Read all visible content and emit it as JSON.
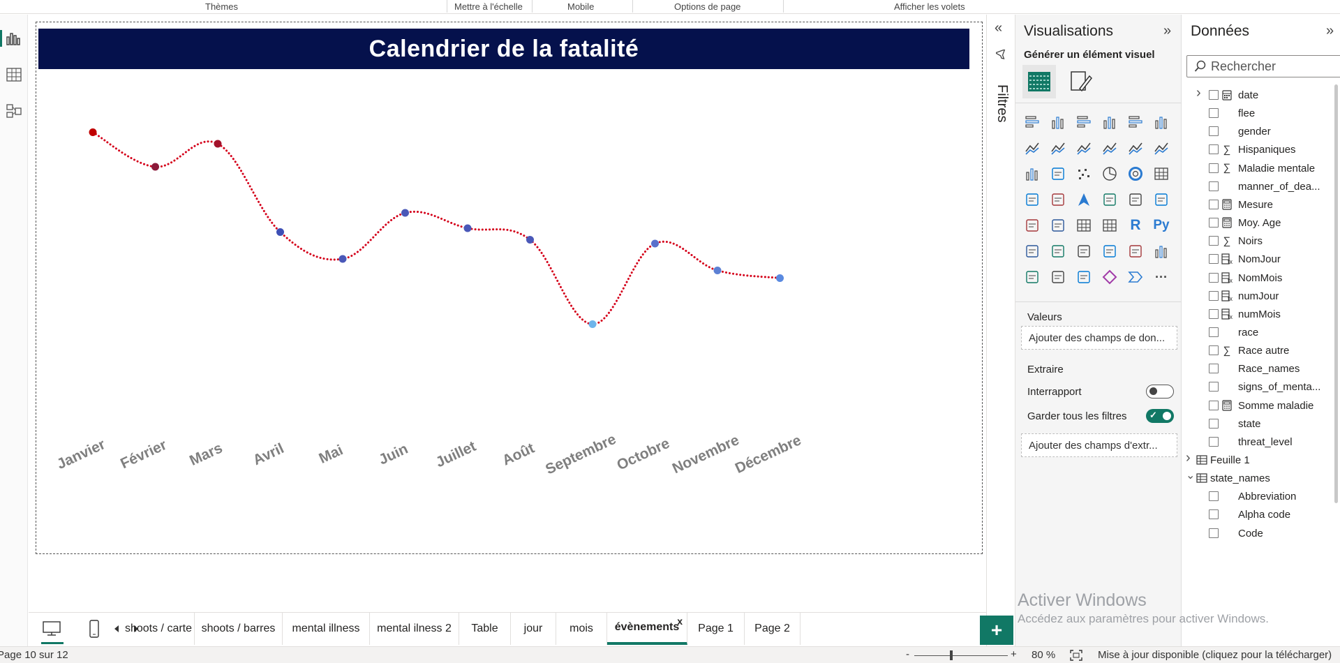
{
  "ribbon": {
    "groups": [
      "Thèmes",
      "Mettre à l'échelle",
      "Mobile",
      "Options de page",
      "Afficher les volets"
    ]
  },
  "left_rail": {
    "icons": [
      "report-view-icon",
      "table-view-icon",
      "model-view-icon"
    ]
  },
  "report": {
    "title": "Calendrier de la fatalité"
  },
  "chart_data": {
    "type": "line",
    "title": "Calendrier de la fatalité",
    "categories": [
      "Janvier",
      "Février",
      "Mars",
      "Avril",
      "Mai",
      "Juin",
      "Juillet",
      "Août",
      "Septembre",
      "Octobre",
      "Novembre",
      "Décembre"
    ],
    "values": [
      95,
      86,
      92,
      69,
      62,
      74,
      70,
      67,
      45,
      66,
      59,
      57
    ],
    "marker_colors": [
      "#c00000",
      "#8b1a3a",
      "#a3122a",
      "#3d4fb5",
      "#4a58b8",
      "#4a58b8",
      "#4a58b8",
      "#4a58b8",
      "#6fb5ea",
      "#5a70cc",
      "#5c80d4",
      "#5a8ae0"
    ],
    "line_color": "#d4001a",
    "line_style": "dotted",
    "axis_label_color": "#7f7f7f",
    "grid": false,
    "legend": "none"
  },
  "filters": {
    "label": "Filtres"
  },
  "visualisations": {
    "title": "Visualisations",
    "subtitle": "Générer un élément visuel",
    "icons": [
      "stacked-bar-icon",
      "stacked-column-icon",
      "clustered-bar-icon",
      "clustered-column-icon",
      "100-bar-icon",
      "100-column-icon",
      "line-chart-icon",
      "area-chart-icon",
      "stacked-area-icon",
      "line-column-icon",
      "line-clustered-icon",
      "ribbon-chart-icon",
      "waterfall-icon",
      "funnel-icon",
      "scatter-icon",
      "pie-icon",
      "donut-icon",
      "treemap-icon",
      "map-icon",
      "filled-map-icon",
      "azure-map-icon",
      "gauge-icon",
      "card-icon",
      "multirow-card-icon",
      "kpi-icon",
      "slicer-icon",
      "table-icon",
      "matrix-icon",
      "r-visual-icon",
      "python-visual-icon",
      "key-influencers-icon",
      "decomposition-tree-icon",
      "qa-icon",
      "smart-narrative-icon",
      "metrics-icon",
      "paginated-report-icon",
      "power-apps-icon",
      "power-automate-icon",
      "custom-visual-icon",
      "diamond-visual-icon",
      "chevron-visual-icon",
      "more-icon"
    ],
    "values_label": "Valeurs",
    "values_placeholder": "Ajouter des champs de don...",
    "drillthrough_label": "Extraire",
    "cross_report_label": "Interrapport",
    "cross_report_on": false,
    "keep_filters_label": "Garder tous les filtres",
    "keep_filters_on": true,
    "drillthrough_placeholder": "Ajouter des champs d'extr..."
  },
  "data_pane": {
    "title": "Données",
    "search_placeholder": "Rechercher",
    "fields": [
      {
        "name": "date",
        "type": "calendar",
        "level": 1,
        "chevron": "right"
      },
      {
        "name": "flee",
        "type": "none",
        "level": 1
      },
      {
        "name": "gender",
        "type": "none",
        "level": 1
      },
      {
        "name": "Hispaniques",
        "type": "sigma",
        "level": 1
      },
      {
        "name": "Maladie mentale",
        "type": "sigma",
        "level": 1
      },
      {
        "name": "manner_of_dea...",
        "type": "none",
        "level": 1
      },
      {
        "name": "Mesure",
        "type": "calc",
        "level": 1
      },
      {
        "name": "Moy. Age",
        "type": "calc",
        "level": 1
      },
      {
        "name": "Noirs",
        "type": "sigma",
        "level": 1
      },
      {
        "name": "NomJour",
        "type": "calccol",
        "level": 1
      },
      {
        "name": "NomMois",
        "type": "calccol",
        "level": 1
      },
      {
        "name": "numJour",
        "type": "calccol",
        "level": 1
      },
      {
        "name": "numMois",
        "type": "calccol",
        "level": 1
      },
      {
        "name": "race",
        "type": "none",
        "level": 1
      },
      {
        "name": "Race autre",
        "type": "sigma",
        "level": 1
      },
      {
        "name": "Race_names",
        "type": "none",
        "level": 1
      },
      {
        "name": "signs_of_menta...",
        "type": "none",
        "level": 1
      },
      {
        "name": "Somme maladie",
        "type": "calc",
        "level": 1
      },
      {
        "name": "state",
        "type": "none",
        "level": 1
      },
      {
        "name": "threat_level",
        "type": "none",
        "level": 1
      },
      {
        "name": "Feuille 1",
        "type": "table",
        "level": 0,
        "chevron": "right"
      },
      {
        "name": "state_names",
        "type": "table",
        "level": 0,
        "chevron": "down"
      },
      {
        "name": "Abbreviation",
        "type": "none",
        "level": 1
      },
      {
        "name": "Alpha code",
        "type": "none",
        "level": 1
      },
      {
        "name": "Code",
        "type": "none",
        "level": 1
      }
    ]
  },
  "watermark": {
    "title": "Activer Windows",
    "subtitle": "Accédez aux paramètres pour activer Windows."
  },
  "tabs": {
    "pages": [
      "shoots / carte",
      "shoots / barres",
      "mental illness",
      "mental ilness 2",
      "Table",
      "jour",
      "mois",
      "évènements",
      "Page 1",
      "Page 2"
    ],
    "active": "évènements",
    "close_glyph": "x",
    "add_glyph": "+"
  },
  "status_bar": {
    "page_info": "Page 10 sur 12",
    "zoom_minus": "-",
    "zoom_plus": "+",
    "zoom_level": "80 %",
    "update_text": "Mise à jour disponible (cliquez pour la télécharger)"
  }
}
